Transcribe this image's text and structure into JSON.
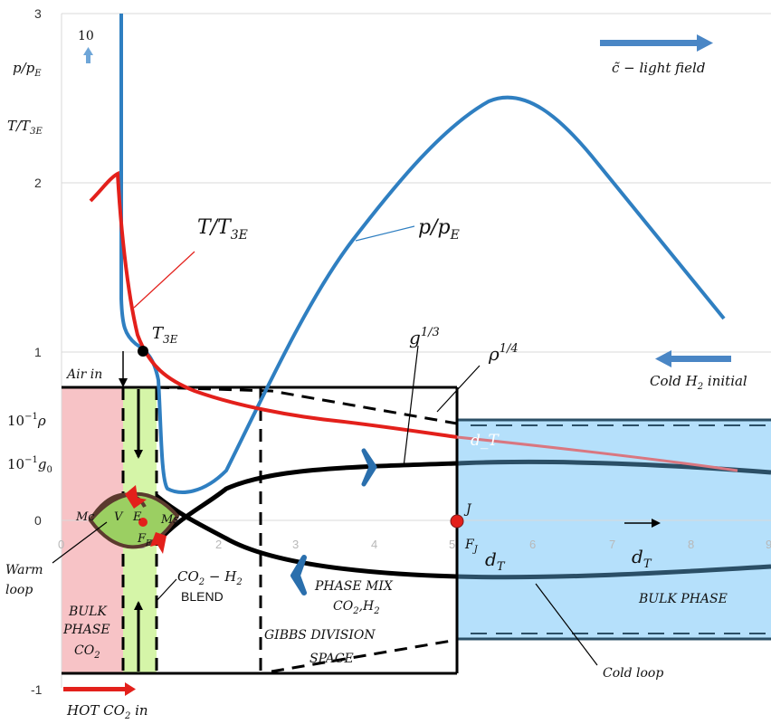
{
  "colors": {
    "red_curve": "#e3201b",
    "blue_curve": "#2f7fc1",
    "black": "#000000",
    "pink_region": "#f7c3c6",
    "green_region": "#d5f5a8",
    "blue_region": "#b5e0fb",
    "dark_loop": "#2b4f66",
    "arrow_blue": "#4a86c5"
  },
  "y_axis": {
    "ticks": [
      "3",
      "2",
      "1",
      "0",
      "-1"
    ],
    "label_p": "p/p",
    "label_p_sub": "E",
    "label_t": "T/T",
    "label_t_sub": "3E",
    "label_rho": "10",
    "label_rho_exp": "−1",
    "label_rho_var": "ρ",
    "label_g": "10",
    "label_g_exp": "−1",
    "label_g_var": "g",
    "label_g_sub": "0"
  },
  "x_axis": {
    "ticks": [
      "0",
      "1",
      "2",
      "3",
      "4",
      "5",
      "6",
      "7",
      "8",
      "9"
    ]
  },
  "labels": {
    "ten": "10",
    "light_field": "c̃ − light field",
    "cold_h2_initial_a": "Cold H",
    "cold_h2_initial_sub": "2",
    "cold_h2_initial_b": " initial",
    "t_curve_label": "T/T",
    "t_curve_label_sub": "3E",
    "p_curve_label": "p/p",
    "p_curve_label_sub": "E",
    "t3e_point": "T",
    "t3e_point_sub": "3E",
    "g_label": "g",
    "g_label_exp": "1/3",
    "rho_label": "ρ",
    "rho_label_exp": "1/4",
    "air_in": "Air in",
    "d_t_overlay": "d_T",
    "point_j": "J",
    "f_j": "F",
    "f_j_sub": "J",
    "d_t_label_1": "d",
    "d_t_label_1_sub": "T",
    "d_t_label_2": "d",
    "d_t_label_2_sub": "T",
    "mc": "Mc",
    "v": "V",
    "e": "E",
    "ms": "Ms",
    "fe": "F",
    "fe_sub": "E",
    "warm_loop_1": "Warm",
    "warm_loop_2": "loop",
    "bulk_phase_co2_1": "BULK",
    "bulk_phase_co2_2": "PHASE",
    "bulk_phase_co2_3": "CO",
    "bulk_phase_co2_3_sub": "2",
    "co2_h2": "CO",
    "co2_h2_sub": "2",
    "co2_h2_rest": " − H",
    "co2_h2_sub2": "2",
    "blend": "BLEND",
    "phase_mix_1": "PHASE MIX",
    "phase_mix_2": "CO",
    "phase_mix_2_sub": "2",
    "phase_mix_2_rest": ",H",
    "phase_mix_2_sub2": "2",
    "gibbs_1": "GIBBS DIVISION",
    "gibbs_2": "SPACE",
    "bulk_phase_right": "BULK PHASE",
    "cold_loop": "Cold loop",
    "hot_co2_a": "HOT CO",
    "hot_co2_sub": "2",
    "hot_co2_b": "  in"
  }
}
